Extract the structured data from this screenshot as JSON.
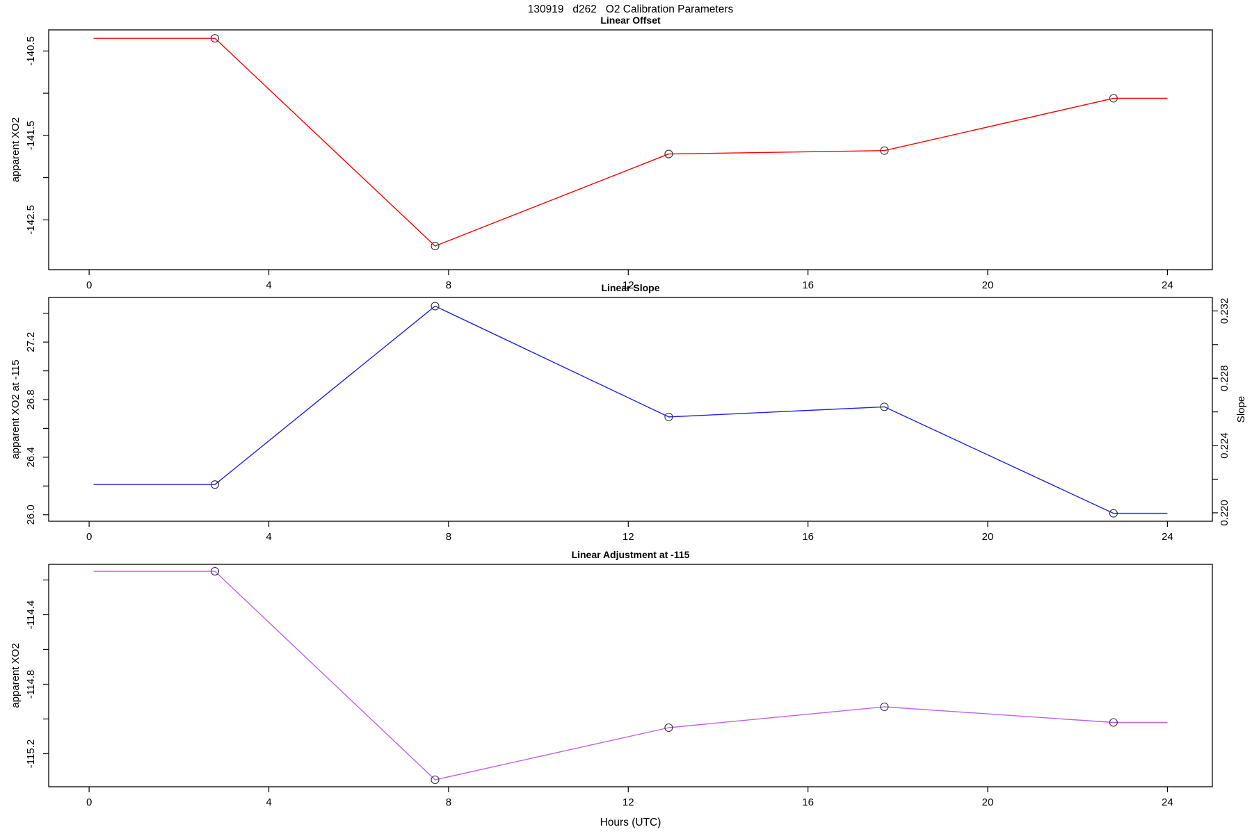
{
  "title": "130919   d262   O2 Calibration Parameters",
  "xlabel": "Hours (UTC)",
  "background_color": "#ffffff",
  "axis_color": "#000000",
  "marker_color": "#303030",
  "chart_data": [
    {
      "type": "line",
      "title": "Linear Offset",
      "ylabel": "apparent XO2",
      "series_color": "#ff0000",
      "marker": "open-circle",
      "x": [
        2.8,
        7.7,
        12.9,
        17.7,
        22.8
      ],
      "y": [
        -140.35,
        -142.81,
        -141.72,
        -141.68,
        -141.06
      ],
      "line_x": [
        0.1,
        2.8,
        7.7,
        12.9,
        17.7,
        22.8,
        24
      ],
      "line_y": [
        -140.35,
        -140.35,
        -142.81,
        -141.72,
        -141.68,
        -141.06,
        -141.06
      ],
      "xlim": [
        -0.9,
        25.0
      ],
      "ylim": [
        -143.09,
        -140.25
      ],
      "xticks": {
        "values": [
          0,
          4,
          8,
          12,
          16,
          20,
          24
        ],
        "labels": [
          "0",
          "4",
          "8",
          "12",
          "16",
          "20",
          "24"
        ]
      },
      "yticks": {
        "values": [
          -142.5,
          -142,
          -141.5,
          -141,
          -140.5
        ],
        "labels": [
          "-142.5",
          "",
          "-141.5",
          "",
          "-140.5"
        ]
      },
      "grid": false,
      "legend": "none"
    },
    {
      "type": "line",
      "title": "Linear Slope",
      "ylabel": "apparent XO2 at -115",
      "y2label": "Slope",
      "series_color": "#2222dd",
      "marker": "open-circle",
      "x": [
        2.8,
        7.7,
        12.9,
        17.7,
        22.8
      ],
      "y": [
        26.21,
        27.45,
        26.68,
        26.75,
        26.01
      ],
      "slope_values": [
        0.2216,
        0.2322,
        0.2256,
        0.2263,
        0.2199
      ],
      "line_x": [
        0.1,
        2.8,
        7.7,
        12.9,
        17.7,
        22.8,
        24
      ],
      "line_y": [
        26.21,
        26.21,
        27.45,
        26.68,
        26.75,
        26.01,
        26.01
      ],
      "xlim": [
        -0.9,
        25.0
      ],
      "ylim": [
        25.955,
        27.51
      ],
      "y2lim": [
        0.2195,
        0.2328
      ],
      "xticks": {
        "values": [
          0,
          4,
          8,
          12,
          16,
          20,
          24
        ],
        "labels": [
          "0",
          "4",
          "8",
          "12",
          "16",
          "20",
          "24"
        ]
      },
      "yticks": {
        "values": [
          26.0,
          26.2,
          26.4,
          26.6,
          26.8,
          27.0,
          27.2,
          27.4
        ],
        "labels": [
          "26.0",
          "",
          "26.4",
          "",
          "26.8",
          "",
          "27.2",
          ""
        ]
      },
      "y2ticks": {
        "values": [
          0.22,
          0.222,
          0.224,
          0.226,
          0.228,
          0.23,
          0.232
        ],
        "labels": [
          "0.220",
          "",
          "0.224",
          "",
          "0.228",
          "",
          "0.232"
        ]
      },
      "grid": false,
      "legend": "none"
    },
    {
      "type": "line",
      "title": "Linear Adjustment at -115",
      "ylabel": "apparent XO2",
      "series_color": "#c061e8",
      "marker": "open-circle",
      "x": [
        2.8,
        7.7,
        12.9,
        17.7,
        22.8
      ],
      "y": [
        -114.15,
        -115.35,
        -115.05,
        -114.93,
        -115.02
      ],
      "line_x": [
        0.1,
        2.8,
        7.7,
        12.9,
        17.7,
        22.8,
        24
      ],
      "line_y": [
        -114.15,
        -114.15,
        -115.35,
        -115.05,
        -114.93,
        -115.02,
        -115.02
      ],
      "xlim": [
        -0.9,
        25.0
      ],
      "ylim": [
        -115.39,
        -114.11
      ],
      "xticks": {
        "values": [
          0,
          4,
          8,
          12,
          16,
          20,
          24
        ],
        "labels": [
          "0",
          "4",
          "8",
          "12",
          "16",
          "20",
          "24"
        ]
      },
      "yticks": {
        "values": [
          -115.2,
          -115.0,
          -114.8,
          -114.6,
          -114.4,
          -114.2
        ],
        "labels": [
          "-115.2",
          "",
          "-114.8",
          "",
          "-114.4",
          ""
        ]
      },
      "grid": false,
      "legend": "none"
    }
  ]
}
